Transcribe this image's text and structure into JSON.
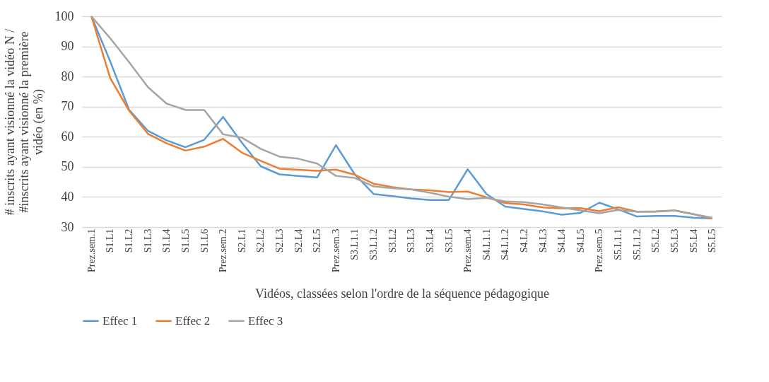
{
  "chart_data": {
    "type": "line",
    "xlabel": "Vidéos, classées selon l'ordre de la séquence pédagogique",
    "ylabel": "# inscrits ayant visionné la vidéo N / #inscrits ayant visionné la première vidéo (en %)",
    "categories": [
      "Prez.sem.1",
      "S1.L1",
      "S1.L2",
      "S1.L3",
      "S1.L4",
      "S1.L5",
      "S1.L6",
      "Prez.sem.2",
      "S2.L1",
      "S2.L2",
      "S2.L3",
      "S2.L4",
      "S2.L5",
      "Prez.sem.3",
      "S3.L1.1",
      "S3.L1.2",
      "S3.L2",
      "S3.L3",
      "S3.L4",
      "S3.L5",
      "Prez.sem.4",
      "S4.L1.1",
      "S4.L1.2",
      "S4.L2",
      "S4.L3",
      "S4.L4",
      "S4.L5",
      "Prez.sem.5",
      "S5.L1.1",
      "S5.L1.2",
      "S5.L2",
      "S5.L3",
      "S5.L4",
      "S5.L5"
    ],
    "series": [
      {
        "name": "Effec 1",
        "color": "#5b9bd5",
        "values": [
          100,
          85,
          69,
          62,
          58.8,
          56.5,
          59,
          66.6,
          58,
          50.2,
          47.5,
          47,
          46.5,
          57.2,
          47.5,
          41,
          40.3,
          39.5,
          39,
          39,
          49.2,
          41,
          36.8,
          36,
          35.2,
          34.1,
          34.7,
          38.1,
          35.9,
          33.5,
          33.7,
          33.7,
          33.1,
          32.9
        ]
      },
      {
        "name": "Effec 2",
        "color": "#ed7d31",
        "values": [
          100,
          79.5,
          68.7,
          61,
          57.8,
          55.4,
          56.7,
          59.3,
          54.7,
          52,
          49.4,
          49,
          48.7,
          49.1,
          47.4,
          44.4,
          43.3,
          42.5,
          42.2,
          41.6,
          41.8,
          39.9,
          38,
          37.5,
          36.5,
          36.2,
          36.3,
          35.3,
          36.6,
          35.1,
          35.1,
          35.5,
          34.3,
          32.8
        ]
      },
      {
        "name": "Effec 3",
        "color": "#a5a5a5",
        "values": [
          100,
          92.7,
          84.8,
          76.5,
          71,
          68.9,
          68.9,
          60.8,
          59.7,
          56,
          53.4,
          52.7,
          51.1,
          47,
          46.3,
          43.5,
          42.9,
          42.5,
          41.4,
          40.1,
          39.3,
          39.7,
          38.5,
          38.3,
          37.5,
          36.5,
          35.5,
          34.6,
          35.7,
          35.1,
          35.2,
          35.5,
          34.3,
          33.1
        ]
      }
    ],
    "ylim": [
      30,
      100
    ],
    "yticks": [
      30,
      40,
      50,
      60,
      70,
      80,
      90,
      100
    ],
    "grid": "y",
    "legend": "bottom",
    "marker": "none",
    "line_style": "solid"
  }
}
